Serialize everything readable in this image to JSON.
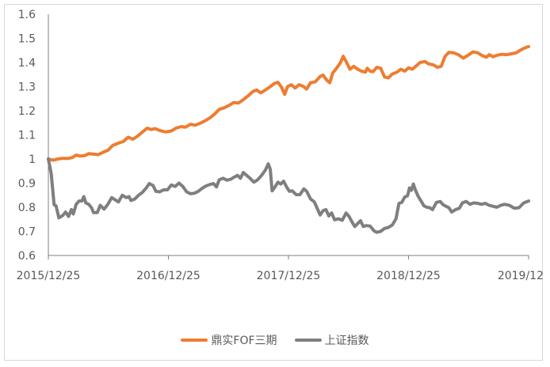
{
  "chart_data": {
    "type": "line",
    "title": "",
    "xlabel": "",
    "ylabel": "",
    "ylim": [
      0.6,
      1.6
    ],
    "yticks": [
      "1.6",
      "1.5",
      "1.4",
      "1.3",
      "1.2",
      "1.1",
      "1",
      "0.9",
      "0.8",
      "0.7",
      "0.6"
    ],
    "xticks": [
      "2015/12/25",
      "2016/12/25",
      "2017/12/25",
      "2018/12/25",
      "2019/12"
    ],
    "grid": false,
    "legend_position": "bottom",
    "series": [
      {
        "name": "鼎实FOF三期",
        "color": "#ED7D31",
        "points": [
          [
            0.0,
            1.0
          ],
          [
            0.01,
            0.995
          ],
          [
            0.02,
            1.0
          ],
          [
            0.03,
            1.003
          ],
          [
            0.04,
            1.002
          ],
          [
            0.05,
            1.006
          ],
          [
            0.058,
            1.016
          ],
          [
            0.066,
            1.012
          ],
          [
            0.076,
            1.014
          ],
          [
            0.084,
            1.022
          ],
          [
            0.094,
            1.02
          ],
          [
            0.104,
            1.018
          ],
          [
            0.114,
            1.028
          ],
          [
            0.124,
            1.036
          ],
          [
            0.134,
            1.056
          ],
          [
            0.146,
            1.066
          ],
          [
            0.156,
            1.072
          ],
          [
            0.166,
            1.09
          ],
          [
            0.176,
            1.082
          ],
          [
            0.186,
            1.095
          ],
          [
            0.196,
            1.112
          ],
          [
            0.206,
            1.128
          ],
          [
            0.214,
            1.122
          ],
          [
            0.222,
            1.126
          ],
          [
            0.232,
            1.118
          ],
          [
            0.244,
            1.112
          ],
          [
            0.256,
            1.116
          ],
          [
            0.266,
            1.128
          ],
          [
            0.276,
            1.134
          ],
          [
            0.286,
            1.132
          ],
          [
            0.296,
            1.144
          ],
          [
            0.306,
            1.14
          ],
          [
            0.316,
            1.148
          ],
          [
            0.326,
            1.158
          ],
          [
            0.336,
            1.17
          ],
          [
            0.346,
            1.186
          ],
          [
            0.356,
            1.206
          ],
          [
            0.366,
            1.212
          ],
          [
            0.376,
            1.222
          ],
          [
            0.386,
            1.234
          ],
          [
            0.396,
            1.232
          ],
          [
            0.406,
            1.246
          ],
          [
            0.416,
            1.262
          ],
          [
            0.426,
            1.28
          ],
          [
            0.434,
            1.286
          ],
          [
            0.442,
            1.274
          ],
          [
            0.452,
            1.286
          ],
          [
            0.462,
            1.3
          ],
          [
            0.47,
            1.312
          ],
          [
            0.478,
            1.318
          ],
          [
            0.486,
            1.296
          ],
          [
            0.492,
            1.268
          ],
          [
            0.498,
            1.3
          ],
          [
            0.506,
            1.308
          ],
          [
            0.514,
            1.294
          ],
          [
            0.522,
            1.308
          ],
          [
            0.53,
            1.302
          ],
          [
            0.538,
            1.29
          ],
          [
            0.546,
            1.316
          ],
          [
            0.556,
            1.32
          ],
          [
            0.566,
            1.342
          ],
          [
            0.572,
            1.348
          ],
          [
            0.58,
            1.326
          ],
          [
            0.586,
            1.316
          ],
          [
            0.592,
            1.356
          ],
          [
            0.6,
            1.376
          ],
          [
            0.608,
            1.398
          ],
          [
            0.614,
            1.426
          ],
          [
            0.62,
            1.404
          ],
          [
            0.628,
            1.372
          ],
          [
            0.636,
            1.384
          ],
          [
            0.644,
            1.372
          ],
          [
            0.652,
            1.364
          ],
          [
            0.66,
            1.36
          ],
          [
            0.664,
            1.376
          ],
          [
            0.67,
            1.364
          ],
          [
            0.676,
            1.362
          ],
          [
            0.684,
            1.38
          ],
          [
            0.692,
            1.376
          ],
          [
            0.7,
            1.34
          ],
          [
            0.708,
            1.336
          ],
          [
            0.716,
            1.352
          ],
          [
            0.726,
            1.36
          ],
          [
            0.734,
            1.372
          ],
          [
            0.742,
            1.364
          ],
          [
            0.75,
            1.378
          ],
          [
            0.758,
            1.372
          ],
          [
            0.766,
            1.386
          ],
          [
            0.774,
            1.4
          ],
          [
            0.784,
            1.404
          ],
          [
            0.792,
            1.394
          ],
          [
            0.802,
            1.39
          ],
          [
            0.81,
            1.38
          ],
          [
            0.818,
            1.384
          ],
          [
            0.826,
            1.426
          ],
          [
            0.834,
            1.442
          ],
          [
            0.844,
            1.44
          ],
          [
            0.854,
            1.432
          ],
          [
            0.864,
            1.418
          ],
          [
            0.874,
            1.43
          ],
          [
            0.884,
            1.444
          ],
          [
            0.894,
            1.44
          ],
          [
            0.904,
            1.428
          ],
          [
            0.912,
            1.422
          ],
          [
            0.918,
            1.432
          ],
          [
            0.926,
            1.424
          ],
          [
            0.934,
            1.43
          ],
          [
            0.944,
            1.434
          ],
          [
            0.954,
            1.432
          ],
          [
            0.964,
            1.436
          ],
          [
            0.974,
            1.44
          ],
          [
            0.984,
            1.452
          ],
          [
            0.994,
            1.462
          ],
          [
            1.0,
            1.466
          ]
        ]
      },
      {
        "name": "上证指数",
        "color": "#7F7F7F",
        "points": [
          [
            0.0,
            1.0
          ],
          [
            0.006,
            0.94
          ],
          [
            0.012,
            0.81
          ],
          [
            0.016,
            0.806
          ],
          [
            0.022,
            0.756
          ],
          [
            0.03,
            0.766
          ],
          [
            0.036,
            0.78
          ],
          [
            0.042,
            0.762
          ],
          [
            0.048,
            0.79
          ],
          [
            0.052,
            0.772
          ],
          [
            0.058,
            0.812
          ],
          [
            0.064,
            0.826
          ],
          [
            0.07,
            0.826
          ],
          [
            0.074,
            0.844
          ],
          [
            0.078,
            0.818
          ],
          [
            0.084,
            0.812
          ],
          [
            0.09,
            0.798
          ],
          [
            0.094,
            0.778
          ],
          [
            0.102,
            0.778
          ],
          [
            0.108,
            0.808
          ],
          [
            0.116,
            0.792
          ],
          [
            0.124,
            0.812
          ],
          [
            0.132,
            0.84
          ],
          [
            0.14,
            0.83
          ],
          [
            0.146,
            0.822
          ],
          [
            0.154,
            0.85
          ],
          [
            0.162,
            0.84
          ],
          [
            0.168,
            0.844
          ],
          [
            0.172,
            0.828
          ],
          [
            0.18,
            0.834
          ],
          [
            0.188,
            0.85
          ],
          [
            0.196,
            0.862
          ],
          [
            0.204,
            0.88
          ],
          [
            0.21,
            0.898
          ],
          [
            0.218,
            0.89
          ],
          [
            0.224,
            0.866
          ],
          [
            0.232,
            0.864
          ],
          [
            0.24,
            0.872
          ],
          [
            0.248,
            0.872
          ],
          [
            0.256,
            0.892
          ],
          [
            0.264,
            0.886
          ],
          [
            0.272,
            0.9
          ],
          [
            0.28,
            0.886
          ],
          [
            0.288,
            0.864
          ],
          [
            0.296,
            0.856
          ],
          [
            0.304,
            0.858
          ],
          [
            0.312,
            0.866
          ],
          [
            0.32,
            0.878
          ],
          [
            0.328,
            0.888
          ],
          [
            0.336,
            0.894
          ],
          [
            0.344,
            0.898
          ],
          [
            0.35,
            0.884
          ],
          [
            0.356,
            0.914
          ],
          [
            0.364,
            0.92
          ],
          [
            0.372,
            0.912
          ],
          [
            0.38,
            0.916
          ],
          [
            0.388,
            0.926
          ],
          [
            0.394,
            0.932
          ],
          [
            0.4,
            0.92
          ],
          [
            0.406,
            0.944
          ],
          [
            0.414,
            0.93
          ],
          [
            0.42,
            0.92
          ],
          [
            0.428,
            0.904
          ],
          [
            0.436,
            0.914
          ],
          [
            0.444,
            0.932
          ],
          [
            0.452,
            0.954
          ],
          [
            0.458,
            0.98
          ],
          [
            0.462,
            0.958
          ],
          [
            0.466,
            0.868
          ],
          [
            0.472,
            0.884
          ],
          [
            0.478,
            0.904
          ],
          [
            0.484,
            0.896
          ],
          [
            0.49,
            0.908
          ],
          [
            0.496,
            0.884
          ],
          [
            0.502,
            0.866
          ],
          [
            0.508,
            0.868
          ],
          [
            0.516,
            0.852
          ],
          [
            0.524,
            0.852
          ],
          [
            0.532,
            0.876
          ],
          [
            0.538,
            0.866
          ],
          [
            0.546,
            0.834
          ],
          [
            0.554,
            0.822
          ],
          [
            0.56,
            0.794
          ],
          [
            0.566,
            0.768
          ],
          [
            0.572,
            0.786
          ],
          [
            0.578,
            0.79
          ],
          [
            0.584,
            0.764
          ],
          [
            0.59,
            0.776
          ],
          [
            0.596,
            0.748
          ],
          [
            0.604,
            0.752
          ],
          [
            0.612,
            0.746
          ],
          [
            0.62,
            0.776
          ],
          [
            0.626,
            0.762
          ],
          [
            0.632,
            0.74
          ],
          [
            0.638,
            0.72
          ],
          [
            0.644,
            0.732
          ],
          [
            0.65,
            0.744
          ],
          [
            0.656,
            0.72
          ],
          [
            0.662,
            0.724
          ],
          [
            0.67,
            0.722
          ],
          [
            0.678,
            0.702
          ],
          [
            0.684,
            0.696
          ],
          [
            0.692,
            0.7
          ],
          [
            0.7,
            0.712
          ],
          [
            0.708,
            0.716
          ],
          [
            0.716,
            0.726
          ],
          [
            0.724,
            0.752
          ],
          [
            0.73,
            0.816
          ],
          [
            0.736,
            0.82
          ],
          [
            0.742,
            0.842
          ],
          [
            0.748,
            0.848
          ],
          [
            0.752,
            0.88
          ],
          [
            0.756,
            0.87
          ],
          [
            0.76,
            0.896
          ],
          [
            0.764,
            0.872
          ],
          [
            0.77,
            0.846
          ],
          [
            0.776,
            0.826
          ],
          [
            0.782,
            0.806
          ],
          [
            0.788,
            0.8
          ],
          [
            0.794,
            0.798
          ],
          [
            0.8,
            0.79
          ],
          [
            0.808,
            0.82
          ],
          [
            0.816,
            0.824
          ],
          [
            0.822,
            0.81
          ],
          [
            0.828,
            0.804
          ],
          [
            0.834,
            0.798
          ],
          [
            0.84,
            0.78
          ],
          [
            0.848,
            0.79
          ],
          [
            0.856,
            0.796
          ],
          [
            0.862,
            0.818
          ],
          [
            0.87,
            0.824
          ],
          [
            0.878,
            0.812
          ],
          [
            0.886,
            0.818
          ],
          [
            0.894,
            0.816
          ],
          [
            0.902,
            0.812
          ],
          [
            0.91,
            0.816
          ],
          [
            0.918,
            0.808
          ],
          [
            0.926,
            0.804
          ],
          [
            0.934,
            0.8
          ],
          [
            0.942,
            0.808
          ],
          [
            0.95,
            0.812
          ],
          [
            0.96,
            0.808
          ],
          [
            0.97,
            0.796
          ],
          [
            0.98,
            0.798
          ],
          [
            0.99,
            0.818
          ],
          [
            1.0,
            0.826
          ]
        ]
      }
    ]
  },
  "legend": {
    "items": [
      {
        "label": "鼎实FOF三期",
        "color": "#ED7D31"
      },
      {
        "label": "上证指数",
        "color": "#7F7F7F"
      }
    ]
  }
}
